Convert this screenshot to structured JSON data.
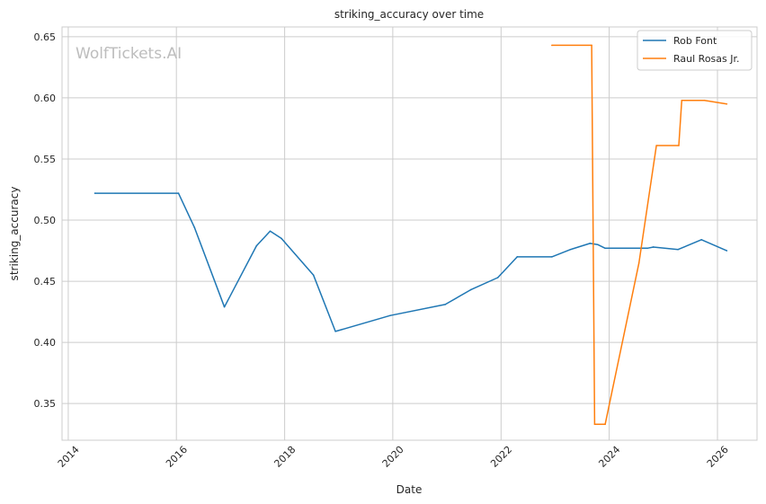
{
  "chart_data": {
    "type": "line",
    "title": "striking_accuracy over time",
    "xlabel": "Date",
    "ylabel": "striking_accuracy",
    "watermark": "WolfTickets.AI",
    "x_ticks": [
      "2014",
      "2016",
      "2018",
      "2020",
      "2022",
      "2024",
      "2026"
    ],
    "y_ticks": [
      "0.35",
      "0.40",
      "0.45",
      "0.50",
      "0.55",
      "0.60",
      "0.65"
    ],
    "xlim": [
      "2013-11-20",
      "2026-09-25"
    ],
    "ylim": [
      0.32,
      0.658
    ],
    "grid": true,
    "legend_position": "top-right",
    "series": [
      {
        "name": "Rob Font",
        "color": "#1f77b4",
        "points": [
          {
            "x": "2014-06-30",
            "y": 0.522
          },
          {
            "x": "2016-01-15",
            "y": 0.522
          },
          {
            "x": "2016-05-02",
            "y": 0.494
          },
          {
            "x": "2016-11-20",
            "y": 0.429
          },
          {
            "x": "2017-06-25",
            "y": 0.479
          },
          {
            "x": "2017-09-25",
            "y": 0.491
          },
          {
            "x": "2017-12-10",
            "y": 0.485
          },
          {
            "x": "2018-07-15",
            "y": 0.455
          },
          {
            "x": "2018-12-10",
            "y": 0.409
          },
          {
            "x": "2019-12-15",
            "y": 0.422
          },
          {
            "x": "2020-12-20",
            "y": 0.431
          },
          {
            "x": "2021-06-10",
            "y": 0.443
          },
          {
            "x": "2021-12-10",
            "y": 0.453
          },
          {
            "x": "2022-04-20",
            "y": 0.47
          },
          {
            "x": "2022-12-10",
            "y": 0.47
          },
          {
            "x": "2023-04-15",
            "y": 0.476
          },
          {
            "x": "2023-08-25",
            "y": 0.481
          },
          {
            "x": "2023-10-15",
            "y": 0.48
          },
          {
            "x": "2023-12-05",
            "y": 0.477
          },
          {
            "x": "2024-09-15",
            "y": 0.477
          },
          {
            "x": "2024-10-25",
            "y": 0.478
          },
          {
            "x": "2025-04-10",
            "y": 0.476
          },
          {
            "x": "2025-09-15",
            "y": 0.484
          },
          {
            "x": "2026-03-05",
            "y": 0.475
          }
        ]
      },
      {
        "name": "Raul Rosas Jr.",
        "color": "#ff7f0e",
        "points": [
          {
            "x": "2022-12-10",
            "y": 0.643
          },
          {
            "x": "2023-09-05",
            "y": 0.643
          },
          {
            "x": "2023-09-25",
            "y": 0.333
          },
          {
            "x": "2023-12-05",
            "y": 0.333
          },
          {
            "x": "2024-07-20",
            "y": 0.465
          },
          {
            "x": "2024-11-15",
            "y": 0.561
          },
          {
            "x": "2025-04-15",
            "y": 0.561
          },
          {
            "x": "2025-05-05",
            "y": 0.598
          },
          {
            "x": "2025-10-05",
            "y": 0.598
          },
          {
            "x": "2026-03-05",
            "y": 0.595
          }
        ]
      }
    ]
  }
}
